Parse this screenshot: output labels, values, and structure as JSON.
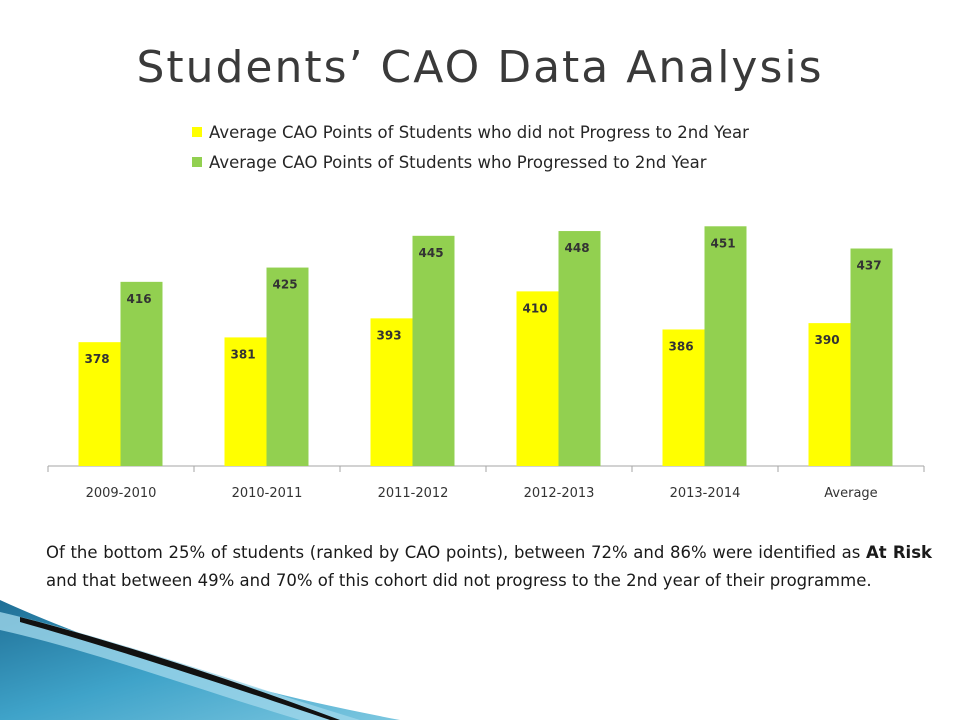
{
  "title": "Students’ CAO Data Analysis",
  "colors": {
    "not_progress": "#ffff00",
    "progressed": "#92d050",
    "axis": "#a6a6a6"
  },
  "chart_data": {
    "type": "bar",
    "categories": [
      "2009-2010",
      "2010-2011",
      "2011-2012",
      "2012-2013",
      "2013-2014",
      "Average"
    ],
    "series": [
      {
        "name": "Average CAO Points of Students who did not  Progress to 2nd Year",
        "values": [
          378,
          381,
          393,
          410,
          386,
          390
        ],
        "color": "#ffff00"
      },
      {
        "name": "Average CAO Points of Students who Progressed to 2nd Year",
        "values": [
          416,
          425,
          445,
          448,
          451,
          437
        ],
        "color": "#92d050"
      }
    ],
    "ylim": [
      300,
      460
    ],
    "legend_position": "top",
    "grid": false,
    "data_labels": true
  },
  "caption": {
    "part1": "Of the bottom 25% of students (ranked by CAO points), between 72% and 86% were identified as ",
    "bold": "At Risk",
    "part2": " and that between 49% and 70% of this cohort did not progress to the 2nd year of their programme."
  }
}
